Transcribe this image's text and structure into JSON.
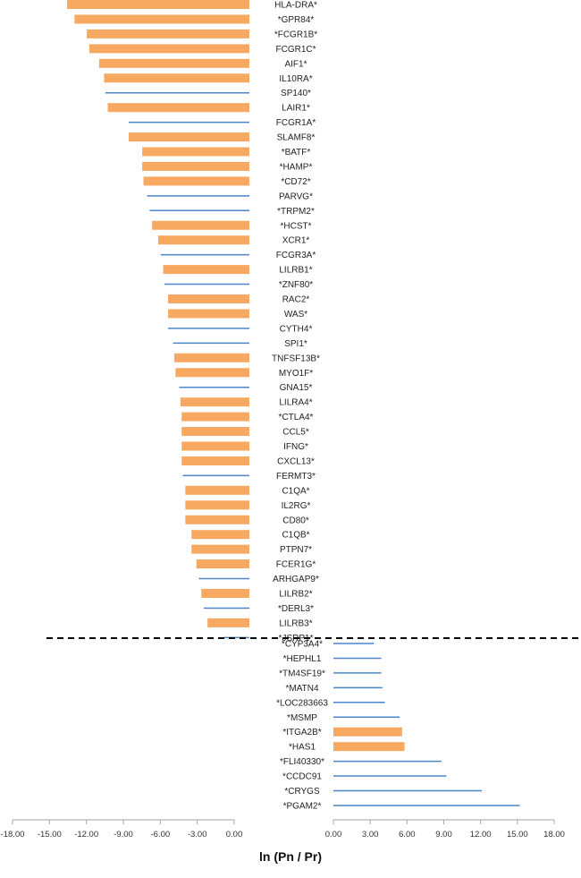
{
  "chart_data": {
    "type": "bar",
    "orientation": "horizontal",
    "xlabel": "ln (Pn / Pr)",
    "colors": {
      "thick_bar": "#F7A962",
      "thin_bar": "#4A86C8",
      "axis": "#A6A6A6",
      "divider": "#000000"
    },
    "legend": "none",
    "grid": false,
    "left_panel": {
      "xlim": [
        -18,
        0
      ],
      "ticks": [
        "-18.00",
        "-15.00",
        "-12.00",
        "-9.00",
        "-6.00",
        "-3.00",
        "0.00"
      ],
      "rows": [
        {
          "label": "HLA-DRA*",
          "value": -14.8,
          "style": "thick"
        },
        {
          "label": "*GPR84*",
          "value": -14.2,
          "style": "thick"
        },
        {
          "label": "*FCGR1B*",
          "value": -13.2,
          "style": "thick"
        },
        {
          "label": "FCGR1C*",
          "value": -13.0,
          "style": "thick"
        },
        {
          "label": "AIF1*",
          "value": -12.2,
          "style": "thick"
        },
        {
          "label": "IL10RA*",
          "value": -11.8,
          "style": "thick"
        },
        {
          "label": "SP140*",
          "value": -11.7,
          "style": "thin"
        },
        {
          "label": "LAIR1*",
          "value": -11.5,
          "style": "thick"
        },
        {
          "label": "FCGR1A*",
          "value": -9.8,
          "style": "thin"
        },
        {
          "label": "SLAMF8*",
          "value": -9.8,
          "style": "thick"
        },
        {
          "label": "*BATF*",
          "value": -8.7,
          "style": "thick"
        },
        {
          "label": "*HAMP*",
          "value": -8.7,
          "style": "thick"
        },
        {
          "label": "*CD72*",
          "value": -8.6,
          "style": "thick"
        },
        {
          "label": "PARVG*",
          "value": -8.3,
          "style": "thin"
        },
        {
          "label": "*TRPM2*",
          "value": -8.1,
          "style": "thin"
        },
        {
          "label": "*HCST*",
          "value": -7.9,
          "style": "thick"
        },
        {
          "label": "XCR1*",
          "value": -7.4,
          "style": "thick"
        },
        {
          "label": "FCGR3A*",
          "value": -7.2,
          "style": "thin"
        },
        {
          "label": "LILRB1*",
          "value": -7.0,
          "style": "thick"
        },
        {
          "label": "*ZNF80*",
          "value": -6.9,
          "style": "thin"
        },
        {
          "label": "RAC2*",
          "value": -6.6,
          "style": "thick"
        },
        {
          "label": "WAS*",
          "value": -6.6,
          "style": "thick"
        },
        {
          "label": "CYTH4*",
          "value": -6.6,
          "style": "thin"
        },
        {
          "label": "SPI1*",
          "value": -6.2,
          "style": "thin"
        },
        {
          "label": "TNFSF13B*",
          "value": -6.1,
          "style": "thick"
        },
        {
          "label": "MYO1F*",
          "value": -6.0,
          "style": "thick"
        },
        {
          "label": "GNA15*",
          "value": -5.7,
          "style": "thin"
        },
        {
          "label": "LILRA4*",
          "value": -5.6,
          "style": "thick"
        },
        {
          "label": "*CTLA4*",
          "value": -5.5,
          "style": "thick"
        },
        {
          "label": "CCL5*",
          "value": -5.5,
          "style": "thick"
        },
        {
          "label": "IFNG*",
          "value": -5.5,
          "style": "thick"
        },
        {
          "label": "CXCL13*",
          "value": -5.5,
          "style": "thick"
        },
        {
          "label": "FERMT3*",
          "value": -5.4,
          "style": "thin"
        },
        {
          "label": "C1QA*",
          "value": -5.2,
          "style": "thick"
        },
        {
          "label": "IL2RG*",
          "value": -5.2,
          "style": "thick"
        },
        {
          "label": "CD80*",
          "value": -5.2,
          "style": "thick"
        },
        {
          "label": "C1QB*",
          "value": -4.7,
          "style": "thick"
        },
        {
          "label": "PTPN7*",
          "value": -4.7,
          "style": "thick"
        },
        {
          "label": "FCER1G*",
          "value": -4.3,
          "style": "thick"
        },
        {
          "label": "ARHGAP9*",
          "value": -4.1,
          "style": "thin"
        },
        {
          "label": "LILRB2*",
          "value": -3.9,
          "style": "thick"
        },
        {
          "label": "*DERL3*",
          "value": -3.7,
          "style": "thin"
        },
        {
          "label": "LILRB3*",
          "value": -3.4,
          "style": "thick"
        },
        {
          "label": "*JSRP1*",
          "value": -2.1,
          "style": "thin"
        }
      ]
    },
    "right_panel": {
      "xlim": [
        0,
        18
      ],
      "ticks": [
        "0.00",
        "3.00",
        "6.00",
        "9.00",
        "12.00",
        "15.00",
        "18.00"
      ],
      "rows": [
        {
          "label": "*CYP3A4*",
          "value": 3.3,
          "style": "thin"
        },
        {
          "label": "*HEPHL1",
          "value": 3.9,
          "style": "thin"
        },
        {
          "label": "*TM4SF19*",
          "value": 3.9,
          "style": "thin"
        },
        {
          "label": "*MATN4",
          "value": 4.0,
          "style": "thin"
        },
        {
          "label": "*LOC283663",
          "value": 4.2,
          "style": "thin"
        },
        {
          "label": "*MSMP",
          "value": 5.4,
          "style": "thin"
        },
        {
          "label": "*ITGA2B*",
          "value": 5.6,
          "style": "thick"
        },
        {
          "label": "*HAS1",
          "value": 5.8,
          "style": "thick"
        },
        {
          "label": "*FLI40330*",
          "value": 8.8,
          "style": "thin"
        },
        {
          "label": "*CCDC91",
          "value": 9.2,
          "style": "thin"
        },
        {
          "label": "*CRYGS",
          "value": 12.1,
          "style": "thin"
        },
        {
          "label": "*PGAM2*",
          "value": 15.2,
          "style": "thin"
        }
      ]
    }
  }
}
